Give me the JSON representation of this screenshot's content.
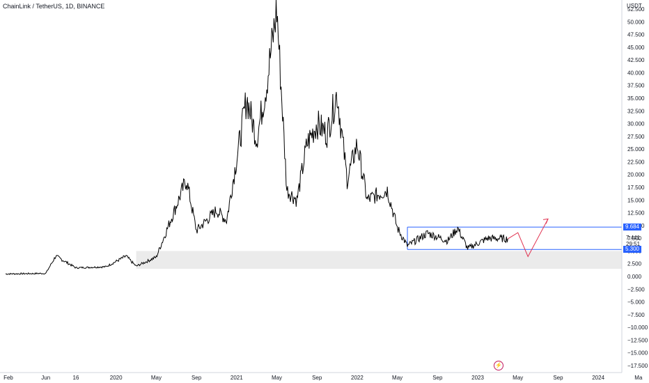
{
  "header": {
    "title": "ChainLink / TetherUS, 1D, BINANCE"
  },
  "price_axis": {
    "unit": "USDT",
    "ticks": [
      "52.500",
      "50.000",
      "47.500",
      "45.000",
      "42.500",
      "40.000",
      "37.500",
      "35.000",
      "32.500",
      "30.000",
      "27.500",
      "25.000",
      "22.500",
      "20.000",
      "17.500",
      "15.000",
      "12.500",
      "10.000",
      "7.500",
      "5.000",
      "2.500",
      "0.000",
      "−2.500",
      "−5.000",
      "−7.500",
      "−10.000",
      "−12.500",
      "−15.000",
      "−17.500"
    ],
    "flags": {
      "upper": "9.684",
      "current": "7.441",
      "countdown": "29:51",
      "lower": "5.300"
    }
  },
  "time_axis": {
    "labels": [
      "Feb",
      "Jun",
      "16",
      "2020",
      "May",
      "Sep",
      "2021",
      "May",
      "Sep",
      "2022",
      "May",
      "Sep",
      "2023",
      "May",
      "Sep",
      "2024",
      "Ma"
    ]
  },
  "colors": {
    "candles": "#000000",
    "range_box": "#2962ff",
    "zone": "#ebebeb",
    "projection": "#e0304e",
    "flag_blue": "#2962ff",
    "background": "#ffffff"
  },
  "icons": {
    "bottom": "lightning-icon"
  },
  "chart_data": {
    "type": "line",
    "symbol": "LINKUSDT",
    "interval": "1D",
    "x": [
      "2019-02",
      "2019-06",
      "2019-07",
      "2019-09",
      "2019-12",
      "2020-02",
      "2020-03",
      "2020-05",
      "2020-08",
      "2020-09",
      "2020-11",
      "2020-12",
      "2021-02",
      "2021-03",
      "2021-04",
      "2021-05",
      "2021-06",
      "2021-07",
      "2021-08",
      "2021-09",
      "2021-10",
      "2021-11",
      "2021-12",
      "2022-01",
      "2022-02",
      "2022-04",
      "2022-05",
      "2022-06",
      "2022-08",
      "2022-10",
      "2022-11",
      "2022-12",
      "2023-02",
      "2023-04"
    ],
    "y": [
      0.5,
      0.6,
      4.0,
      1.7,
      1.9,
      4.0,
      2.0,
      3.8,
      19.0,
      9.0,
      13.0,
      11.0,
      35.0,
      27.0,
      38.0,
      52.5,
      17.0,
      15.0,
      26.0,
      30.0,
      28.0,
      36.0,
      19.0,
      26.0,
      15.0,
      17.0,
      9.5,
      6.0,
      8.5,
      7.0,
      9.5,
      5.5,
      7.5,
      7.4
    ],
    "ylim": [
      -17.5,
      52.5
    ],
    "range_box": {
      "top": 9.684,
      "bottom": 5.3
    },
    "support_zone": {
      "top": 5.0,
      "bottom": 1.5
    },
    "projection": {
      "x": [
        "2023-04",
        "2023-05",
        "2023-06",
        "2023-08"
      ],
      "y": [
        7.4,
        8.6,
        3.9,
        11.3
      ]
    },
    "grid": false
  }
}
